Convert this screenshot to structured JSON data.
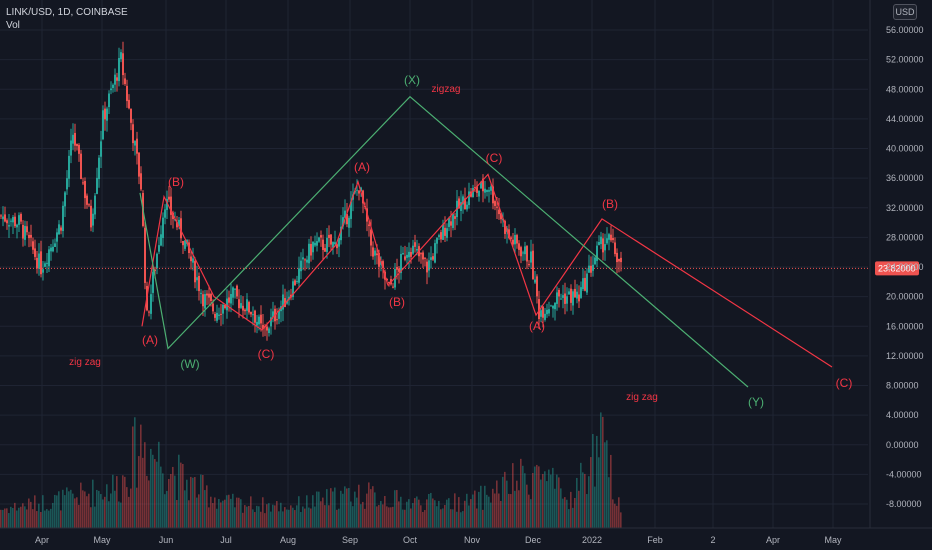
{
  "header": {
    "symbol": "LINK/USD, 1D, COINBASE",
    "volume_label": "Vol"
  },
  "currency_button": "USD",
  "colors": {
    "up": "#26a69a",
    "down": "#ef5350",
    "wave_red": "#f23645",
    "wave_green": "#4caf72",
    "background": "#131722",
    "grid": "#1f2433"
  },
  "current_price": "23.82000",
  "chart_data": {
    "type": "candlestick",
    "title": "LINK/USD, 1D, COINBASE",
    "ylim": [
      -10,
      58
    ],
    "y_ticks": [
      "56.00000",
      "52.00000",
      "48.00000",
      "44.00000",
      "40.00000",
      "36.00000",
      "32.00000",
      "28.00000",
      "24.00000",
      "20.00000",
      "16.00000",
      "12.00000",
      "8.00000",
      "4.00000",
      "0.00000",
      "-4.00000",
      "-8.00000"
    ],
    "x_ticks": [
      "Apr",
      "May",
      "Jun",
      "Jul",
      "Aug",
      "Sep",
      "Oct",
      "Nov",
      "Dec",
      "2022",
      "Feb",
      "2",
      "Apr",
      "May"
    ],
    "price_path": [
      [
        "2021-03-10",
        31
      ],
      [
        "2021-03-20",
        30
      ],
      [
        "2021-03-31",
        24
      ],
      [
        "2021-04-10",
        30
      ],
      [
        "2021-04-16",
        42
      ],
      [
        "2021-04-25",
        30
      ],
      [
        "2021-05-01",
        44
      ],
      [
        "2021-05-10",
        52
      ],
      [
        "2021-05-20",
        35
      ],
      [
        "2021-05-23",
        17
      ],
      [
        "2021-06-01",
        33
      ],
      [
        "2021-06-10",
        28
      ],
      [
        "2021-06-20",
        20
      ],
      [
        "2021-06-26",
        18
      ],
      [
        "2021-07-05",
        20
      ],
      [
        "2021-07-15",
        18
      ],
      [
        "2021-07-20",
        15
      ],
      [
        "2021-08-01",
        20
      ],
      [
        "2021-08-14",
        27
      ],
      [
        "2021-08-25",
        27
      ],
      [
        "2021-09-06",
        35
      ],
      [
        "2021-09-12",
        27
      ],
      [
        "2021-09-21",
        21
      ],
      [
        "2021-10-01",
        27
      ],
      [
        "2021-10-10",
        24
      ],
      [
        "2021-10-20",
        30
      ],
      [
        "2021-11-01",
        34
      ],
      [
        "2021-11-10",
        35
      ],
      [
        "2021-11-20",
        28
      ],
      [
        "2021-12-01",
        25
      ],
      [
        "2021-12-05",
        18
      ],
      [
        "2021-12-15",
        20
      ],
      [
        "2021-12-25",
        20
      ],
      [
        "2022-01-03",
        26
      ],
      [
        "2022-01-08",
        28
      ],
      [
        "2022-01-12",
        26
      ],
      [
        "2022-01-15",
        24
      ]
    ],
    "volume_profile": [
      [
        "2021-03-10",
        0.12
      ],
      [
        "2021-04-15",
        0.25
      ],
      [
        "2021-05-10",
        0.4
      ],
      [
        "2021-05-20",
        0.9
      ],
      [
        "2021-06-10",
        0.45
      ],
      [
        "2021-07-01",
        0.2
      ],
      [
        "2021-08-01",
        0.15
      ],
      [
        "2021-09-05",
        0.3
      ],
      [
        "2021-10-01",
        0.2
      ],
      [
        "2021-11-01",
        0.2
      ],
      [
        "2021-12-05",
        0.55
      ],
      [
        "2021-12-20",
        0.2
      ],
      [
        "2022-01-05",
        0.85
      ],
      [
        "2022-01-15",
        0.15
      ]
    ],
    "waves_red": [
      {
        "points": [
          [
            "2021-05-21",
            16
          ],
          [
            "2021-06-01",
            33.5
          ],
          [
            "2021-06-26",
            20
          ],
          [
            "2021-07-20",
            15.5
          ]
        ],
        "labels": [
          "(A)",
          "(B)",
          "(C)"
        ]
      },
      {
        "points": [
          [
            "2021-07-20",
            15.5
          ],
          [
            "2021-08-26",
            27
          ],
          [
            "2021-09-06",
            35.5
          ],
          [
            "2021-09-21",
            21.5
          ]
        ],
        "labels": [
          "(A)",
          "(B)"
        ]
      },
      {
        "points": [
          [
            "2021-09-21",
            21.5
          ],
          [
            "2021-11-10",
            36.5
          ],
          [
            "2021-12-04",
            17.5
          ],
          [
            "2022-01-06",
            30.5
          ],
          [
            "2022-05-01",
            10.5
          ]
        ],
        "labels": [
          "(C)",
          "(A)",
          "(B)",
          "(C)"
        ]
      }
    ],
    "waves_green": {
      "points": [
        [
          "2021-05-20",
          34
        ],
        [
          "2021-06-03",
          13
        ],
        [
          "2021-10-02",
          47
        ],
        [
          "2022-03-20",
          7.8
        ]
      ],
      "labels": [
        "(W)",
        "(X)",
        "(Y)"
      ]
    },
    "annotations": [
      "zig zag",
      "zigzag",
      "zig zag"
    ]
  }
}
